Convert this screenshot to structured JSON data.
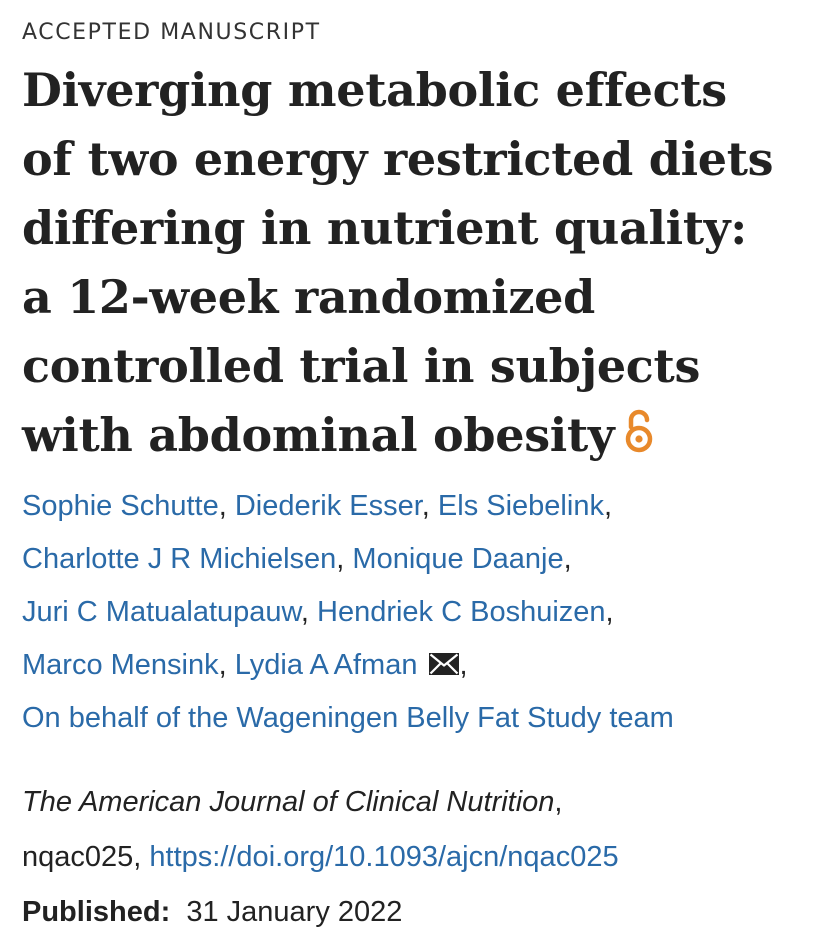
{
  "header": {
    "label": "ACCEPTED MANUSCRIPT"
  },
  "article": {
    "title_lines": [
      "Diverging metabolic effects",
      "of two energy restricted diets",
      "differing in nutrient quality:",
      "a 12-week randomized",
      "controlled trial in subjects",
      "with abdominal obesity"
    ],
    "open_access_icon": "open-access-lock-icon",
    "authors": [
      "Sophie Schutte",
      "Diederik Esser",
      "Els Siebelink",
      "Charlotte J R Michielsen",
      "Monique Daanje",
      "Juri C Matualatupauw",
      "Hendriek C Boshuizen",
      "Marco Mensink",
      "Lydia A Afman",
      "On behalf of the Wageningen Belly Fat Study team"
    ],
    "separator": ",",
    "contact_icon": "envelope-icon",
    "journal": "The American Journal of Clinical Nutrition",
    "article_id": "nqac025,",
    "doi": "https://doi.org/10.1093/ajcn/nqac025",
    "published_label": "Published:",
    "published_date": "31 January 2022"
  },
  "colors": {
    "link": "#2a6aa8",
    "text": "#222222",
    "open_access": "#e8892b"
  }
}
